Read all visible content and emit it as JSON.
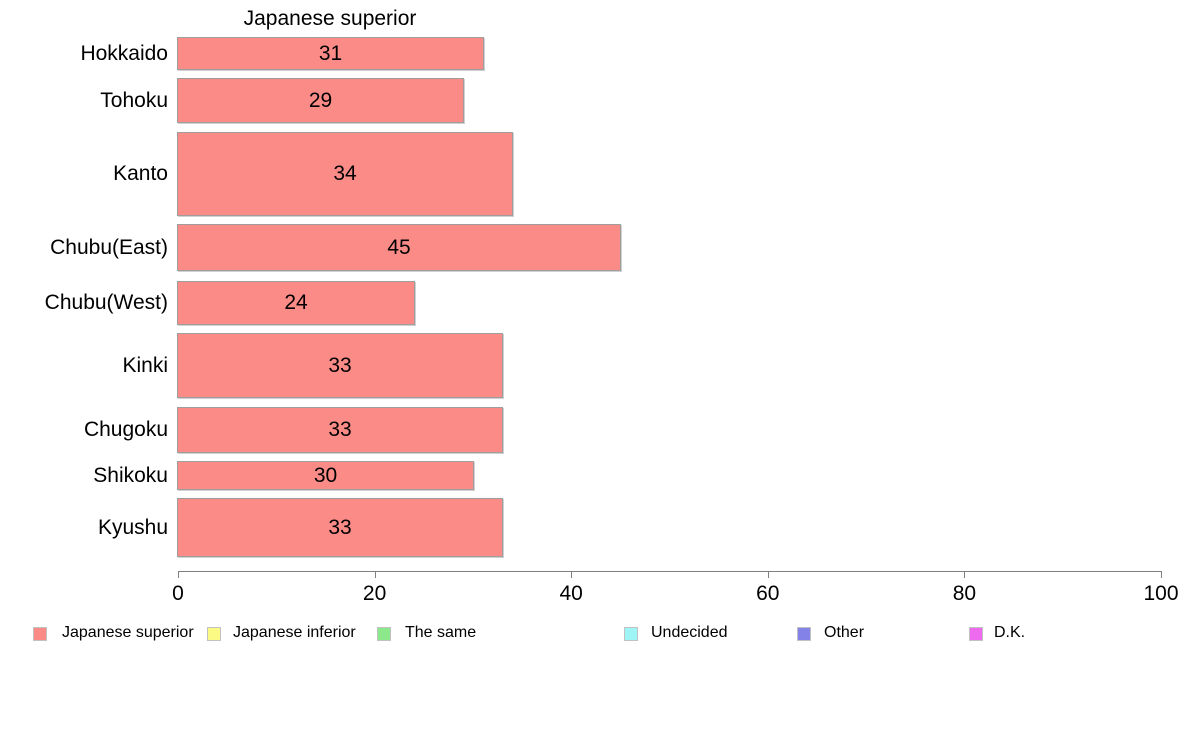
{
  "chart_data": {
    "type": "bar",
    "orientation": "horizontal",
    "title": "Japanese superior",
    "categories": [
      "Hokkaido",
      "Tohoku",
      "Kanto",
      "Chubu(East)",
      "Chubu(West)",
      "Kinki",
      "Chugoku",
      "Shikoku",
      "Kyushu"
    ],
    "values": [
      31,
      29,
      34,
      45,
      24,
      33,
      33,
      30,
      33
    ],
    "bar_thickness_px": [
      33,
      45,
      84,
      47,
      44,
      65,
      46,
      29,
      59
    ],
    "value_labels": [
      "31",
      "29",
      "34",
      "45",
      "24",
      "33",
      "33",
      "30",
      "33"
    ],
    "xlim": [
      0,
      100
    ],
    "xticks": [
      0,
      20,
      40,
      60,
      80,
      100
    ],
    "xtick_labels": [
      "0",
      "20",
      "40",
      "60",
      "80",
      "100"
    ],
    "grid": "off",
    "bar_color": "#FB8B86",
    "bar_border_color": "#9E9E9E",
    "axis_color": "#808080",
    "legend_position": "bottom",
    "legend": [
      {
        "label": "Japanese superior",
        "color": "#FB8B86"
      },
      {
        "label": "Japanese inferior",
        "color": "#FAFA84"
      },
      {
        "label": "The same",
        "color": "#8BE88B"
      },
      {
        "label": "Undecided",
        "color": "#9FF5F5"
      },
      {
        "label": "Other",
        "color": "#8282E8"
      },
      {
        "label": "D.K.",
        "color": "#EE6AEE"
      }
    ]
  }
}
